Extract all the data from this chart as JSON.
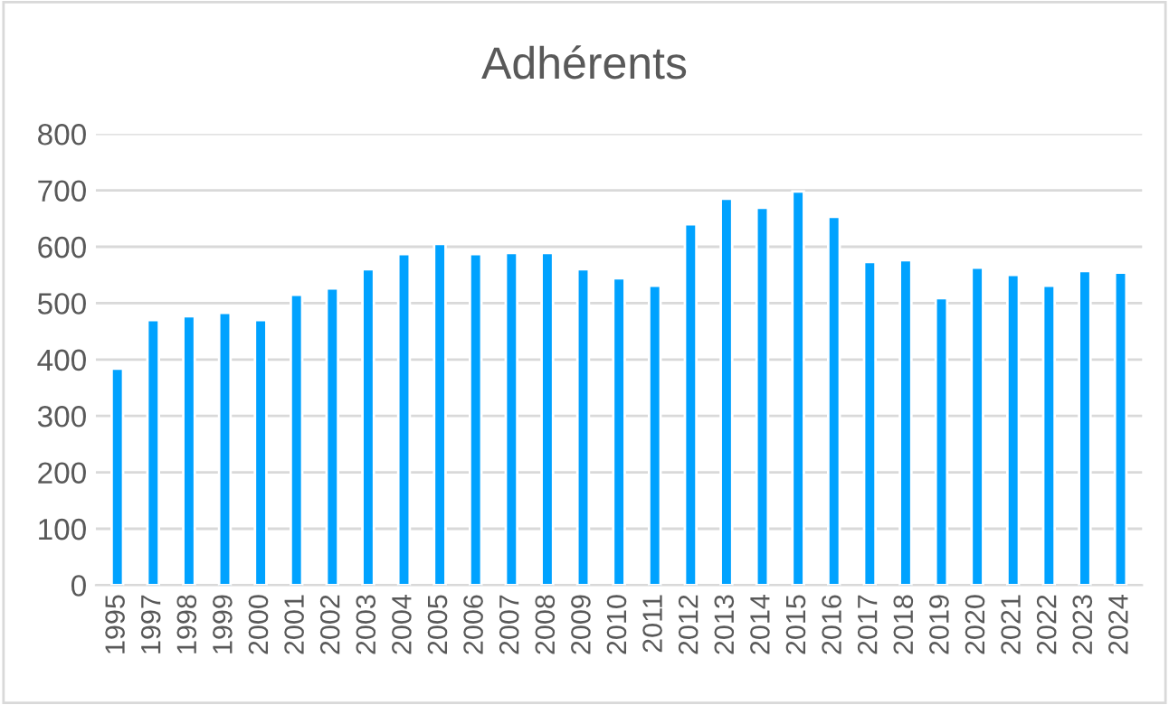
{
  "chart_data": {
    "type": "bar",
    "title": "Adhérents",
    "categories": [
      "1995",
      "1997",
      "1998",
      "1999",
      "2000",
      "2001",
      "2002",
      "2003",
      "2004",
      "2005",
      "2006",
      "2007",
      "2008",
      "2009",
      "2010",
      "2011",
      "2012",
      "2013",
      "2014",
      "2015",
      "2016",
      "2017",
      "2018",
      "2019",
      "2020",
      "2021",
      "2022",
      "2023",
      "2024"
    ],
    "values": [
      384,
      470,
      477,
      483,
      470,
      515,
      526,
      560,
      587,
      605,
      587,
      589,
      589,
      560,
      544,
      531,
      640,
      685,
      669,
      698,
      653,
      573,
      576,
      509,
      563,
      550,
      531,
      557,
      554
    ],
    "color": "#00a2ff",
    "ylim": [
      0,
      800
    ],
    "yticks": [
      0,
      100,
      200,
      300,
      400,
      500,
      600,
      700,
      800
    ],
    "grid": "y",
    "legend": false
  }
}
